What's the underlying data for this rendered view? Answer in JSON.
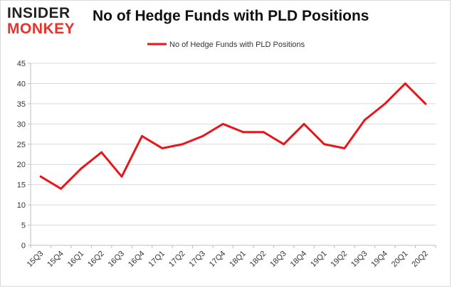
{
  "brand": {
    "logo_top": "INSIDER",
    "logo_bottom": "MONKEY"
  },
  "chart_data": {
    "type": "line",
    "title": "No of Hedge Funds with PLD Positions",
    "xlabel": "",
    "ylabel": "",
    "categories": [
      "15Q3",
      "15Q4",
      "16Q1",
      "16Q2",
      "16Q3",
      "16Q4",
      "17Q1",
      "17Q2",
      "17Q3",
      "17Q4",
      "18Q1",
      "18Q2",
      "18Q3",
      "18Q4",
      "19Q1",
      "19Q2",
      "19Q3",
      "19Q4",
      "20Q1",
      "20Q2"
    ],
    "series": [
      {
        "name": "No of Hedge Funds with PLD Positions",
        "color": "#e8161b",
        "values": [
          17,
          14,
          19,
          23,
          17,
          27,
          24,
          25,
          27,
          30,
          28,
          28,
          25,
          30,
          25,
          24,
          31,
          35,
          40,
          35
        ]
      }
    ],
    "ylim": [
      0,
      45
    ],
    "yticks": [
      0,
      5,
      10,
      15,
      20,
      25,
      30,
      35,
      40,
      45
    ],
    "grid": true,
    "legend": "top-center"
  }
}
